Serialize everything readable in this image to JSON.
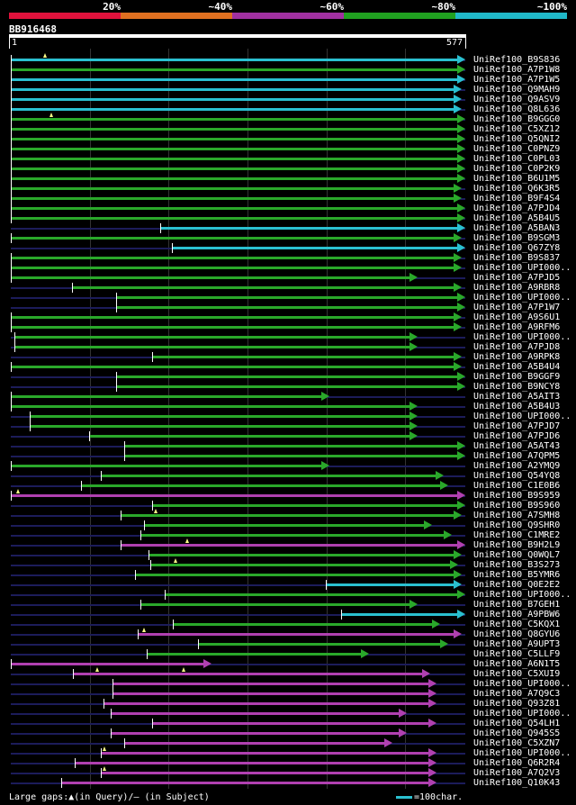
{
  "legend": {
    "labels": [
      "20%",
      "~40%",
      "~60%",
      "~80%",
      "~100%"
    ],
    "colors": [
      "#e0123c",
      "#e07020",
      "#a030a0",
      "#20a020",
      "#20b8c8"
    ]
  },
  "query": {
    "title": "BB916468",
    "start": "1",
    "end": "577",
    "length": 577
  },
  "footer": {
    "text": "Large gaps:▲(in Query)/— (in Subject)",
    "scale_text": "=100char."
  },
  "hits": [
    {
      "label": "UniRef100_B9S836",
      "start": 1,
      "end": 577,
      "color": "#2ac0d0",
      "gaps": [
        44
      ]
    },
    {
      "label": "UniRef100_A7P1W8",
      "start": 1,
      "end": 577,
      "color": "#2aa82a",
      "gaps": []
    },
    {
      "label": "UniRef100_A7P1W5",
      "start": 1,
      "end": 577,
      "color": "#2ac0d0",
      "gaps": []
    },
    {
      "label": "UniRef100_Q9MAH9",
      "start": 1,
      "end": 572,
      "color": "#2ac0d0",
      "gaps": []
    },
    {
      "label": "UniRef100_Q9ASV9",
      "start": 1,
      "end": 572,
      "color": "#2ac0d0",
      "gaps": []
    },
    {
      "label": "UniRef100_Q8L636",
      "start": 1,
      "end": 572,
      "color": "#2ac0d0",
      "gaps": []
    },
    {
      "label": "UniRef100_B9GGG0",
      "start": 1,
      "end": 577,
      "color": "#2aa82a",
      "gaps": [
        52
      ]
    },
    {
      "label": "UniRef100_C5XZ12",
      "start": 1,
      "end": 577,
      "color": "#2aa82a",
      "gaps": []
    },
    {
      "label": "UniRef100_Q5QNI2",
      "start": 1,
      "end": 577,
      "color": "#2aa82a",
      "gaps": []
    },
    {
      "label": "UniRef100_C0PNZ9",
      "start": 1,
      "end": 577,
      "color": "#2aa82a",
      "gaps": []
    },
    {
      "label": "UniRef100_C0PL03",
      "start": 1,
      "end": 577,
      "color": "#2aa82a",
      "gaps": []
    },
    {
      "label": "UniRef100_C0P2K9",
      "start": 1,
      "end": 577,
      "color": "#2aa82a",
      "gaps": []
    },
    {
      "label": "UniRef100_B6U1M5",
      "start": 1,
      "end": 577,
      "color": "#2aa82a",
      "gaps": []
    },
    {
      "label": "UniRef100_Q6K3R5",
      "start": 1,
      "end": 572,
      "color": "#2aa82a",
      "gaps": []
    },
    {
      "label": "UniRef100_B9F4S4",
      "start": 1,
      "end": 572,
      "color": "#2aa82a",
      "gaps": []
    },
    {
      "label": "UniRef100_A7PJD4",
      "start": 1,
      "end": 577,
      "color": "#2aa82a",
      "gaps": []
    },
    {
      "label": "UniRef100_A5B4U5",
      "start": 1,
      "end": 577,
      "color": "#2aa82a",
      "gaps": []
    },
    {
      "label": "UniRef100_A5BAN3",
      "start": 190,
      "end": 577,
      "color": "#2ac0d0",
      "gaps": []
    },
    {
      "label": "UniRef100_B9SGM3",
      "start": 1,
      "end": 572,
      "color": "#2aa82a",
      "gaps": []
    },
    {
      "label": "UniRef100_Q67ZY8",
      "start": 205,
      "end": 577,
      "color": "#2ac0d0",
      "gaps": []
    },
    {
      "label": "UniRef100_B9S837",
      "start": 1,
      "end": 572,
      "color": "#2aa82a",
      "gaps": []
    },
    {
      "label": "UniRef100_UPI000..",
      "start": 1,
      "end": 572,
      "color": "#2aa82a",
      "gaps": []
    },
    {
      "label": "UniRef100_A7PJD5",
      "start": 1,
      "end": 517,
      "color": "#2aa82a",
      "gaps": []
    },
    {
      "label": "UniRef100_A9RBR8",
      "start": 78,
      "end": 572,
      "color": "#2aa82a",
      "gaps": []
    },
    {
      "label": "UniRef100_UPI000..",
      "start": 135,
      "end": 577,
      "color": "#2aa82a",
      "gaps": []
    },
    {
      "label": "UniRef100_A7P1W7",
      "start": 135,
      "end": 577,
      "color": "#2aa82a",
      "gaps": []
    },
    {
      "label": "UniRef100_A9S6U1",
      "start": 1,
      "end": 572,
      "color": "#2aa82a",
      "gaps": []
    },
    {
      "label": "UniRef100_A9RFM6",
      "start": 1,
      "end": 572,
      "color": "#2aa82a",
      "gaps": []
    },
    {
      "label": "UniRef100_UPI000..",
      "start": 5,
      "end": 517,
      "color": "#2aa82a",
      "gaps": []
    },
    {
      "label": "UniRef100_A7PJD8",
      "start": 5,
      "end": 517,
      "color": "#2aa82a",
      "gaps": []
    },
    {
      "label": "UniRef100_A9RPK8",
      "start": 180,
      "end": 572,
      "color": "#2aa82a",
      "gaps": []
    },
    {
      "label": "UniRef100_A5B4U4",
      "start": 1,
      "end": 572,
      "color": "#2aa82a",
      "gaps": []
    },
    {
      "label": "UniRef100_B9GGF9",
      "start": 135,
      "end": 577,
      "color": "#2aa82a",
      "gaps": []
    },
    {
      "label": "UniRef100_B9NCY8",
      "start": 135,
      "end": 577,
      "color": "#2aa82a",
      "gaps": []
    },
    {
      "label": "UniRef100_A5AIT3",
      "start": 1,
      "end": 405,
      "color": "#2aa82a",
      "gaps": []
    },
    {
      "label": "UniRef100_A5B4U3",
      "start": 1,
      "end": 517,
      "color": "#2aa82a",
      "gaps": []
    },
    {
      "label": "UniRef100_UPI000..",
      "start": 25,
      "end": 517,
      "color": "#2aa82a",
      "gaps": []
    },
    {
      "label": "UniRef100_A7PJD7",
      "start": 25,
      "end": 517,
      "color": "#2aa82a",
      "gaps": []
    },
    {
      "label": "UniRef100_A7PJD6",
      "start": 100,
      "end": 517,
      "color": "#2aa82a",
      "gaps": []
    },
    {
      "label": "UniRef100_A5AT43",
      "start": 145,
      "end": 577,
      "color": "#2aa82a",
      "gaps": []
    },
    {
      "label": "UniRef100_A7QPM5",
      "start": 145,
      "end": 577,
      "color": "#2aa82a",
      "gaps": []
    },
    {
      "label": "UniRef100_A2YMQ9",
      "start": 1,
      "end": 405,
      "color": "#2aa82a",
      "gaps": []
    },
    {
      "label": "UniRef100_Q54YQ8",
      "start": 115,
      "end": 550,
      "color": "#2aa82a",
      "gaps": []
    },
    {
      "label": "UniRef100_C1E0B6",
      "start": 90,
      "end": 555,
      "color": "#2aa82a",
      "gaps": []
    },
    {
      "label": "UniRef100_B9S959",
      "start": 1,
      "end": 577,
      "color": "#b040b0",
      "gaps": [
        10
      ]
    },
    {
      "label": "UniRef100_B9S960",
      "start": 180,
      "end": 577,
      "color": "#2aa82a",
      "gaps": []
    },
    {
      "label": "UniRef100_A7SMH8",
      "start": 140,
      "end": 572,
      "color": "#2aa82a",
      "gaps": [
        185
      ]
    },
    {
      "label": "UniRef100_Q9SHR0",
      "start": 170,
      "end": 535,
      "color": "#2aa82a",
      "gaps": []
    },
    {
      "label": "UniRef100_C1MRE2",
      "start": 165,
      "end": 560,
      "color": "#2aa82a",
      "gaps": []
    },
    {
      "label": "UniRef100_B9H2L9",
      "start": 140,
      "end": 577,
      "color": "#b040b0",
      "gaps": [
        225
      ]
    },
    {
      "label": "UniRef100_Q0WQL7",
      "start": 175,
      "end": 572,
      "color": "#2aa82a",
      "gaps": []
    },
    {
      "label": "UniRef100_B3S273",
      "start": 178,
      "end": 568,
      "color": "#2aa82a",
      "gaps": [
        210
      ]
    },
    {
      "label": "UniRef100_B5YMR6",
      "start": 158,
      "end": 572,
      "color": "#2aa82a",
      "gaps": []
    },
    {
      "label": "UniRef100_Q0E2E2",
      "start": 400,
      "end": 572,
      "color": "#2ac0d0",
      "gaps": []
    },
    {
      "label": "UniRef100_UPI000..",
      "start": 196,
      "end": 577,
      "color": "#2aa82a",
      "gaps": []
    },
    {
      "label": "UniRef100_B7GEH1",
      "start": 165,
      "end": 517,
      "color": "#2aa82a",
      "gaps": []
    },
    {
      "label": "UniRef100_A9PBW6",
      "start": 420,
      "end": 577,
      "color": "#2ac0d0",
      "gaps": []
    },
    {
      "label": "UniRef100_C5KQX1",
      "start": 206,
      "end": 545,
      "color": "#2aa82a",
      "gaps": []
    },
    {
      "label": "UniRef100_Q8GYU6",
      "start": 162,
      "end": 572,
      "color": "#b040b0",
      "gaps": [
        170
      ]
    },
    {
      "label": "UniRef100_A9UPT3",
      "start": 238,
      "end": 555,
      "color": "#2aa82a",
      "gaps": []
    },
    {
      "label": "UniRef100_C5LLF9",
      "start": 173,
      "end": 455,
      "color": "#2aa82a",
      "gaps": []
    },
    {
      "label": "UniRef100_A6N1T5",
      "start": 1,
      "end": 255,
      "color": "#b040b0",
      "gaps": []
    },
    {
      "label": "UniRef100_C5XUI9",
      "start": 80,
      "end": 532,
      "color": "#b040b0",
      "gaps": [
        110,
        220
      ]
    },
    {
      "label": "UniRef100_UPI000..",
      "start": 130,
      "end": 540,
      "color": "#b040b0",
      "gaps": []
    },
    {
      "label": "UniRef100_A7Q9C3",
      "start": 130,
      "end": 540,
      "color": "#b040b0",
      "gaps": []
    },
    {
      "label": "UniRef100_Q93Z81",
      "start": 118,
      "end": 540,
      "color": "#b040b0",
      "gaps": []
    },
    {
      "label": "UniRef100_UPI000..",
      "start": 128,
      "end": 503,
      "color": "#b040b0",
      "gaps": []
    },
    {
      "label": "UniRef100_Q54LH1",
      "start": 180,
      "end": 540,
      "color": "#b040b0",
      "gaps": []
    },
    {
      "label": "UniRef100_Q945S5",
      "start": 128,
      "end": 503,
      "color": "#b040b0",
      "gaps": []
    },
    {
      "label": "UniRef100_C5XZN7",
      "start": 145,
      "end": 485,
      "color": "#b040b0",
      "gaps": []
    },
    {
      "label": "UniRef100_UPI000..",
      "start": 115,
      "end": 540,
      "color": "#b040b0",
      "gaps": [
        120
      ]
    },
    {
      "label": "UniRef100_Q6R2R4",
      "start": 82,
      "end": 540,
      "color": "#b040b0",
      "gaps": []
    },
    {
      "label": "UniRef100_A7Q2V3",
      "start": 115,
      "end": 540,
      "color": "#b040b0",
      "gaps": [
        120
      ]
    },
    {
      "label": "UniRef100_Q10K43",
      "start": 65,
      "end": 540,
      "color": "#b040b0",
      "gaps": []
    }
  ]
}
